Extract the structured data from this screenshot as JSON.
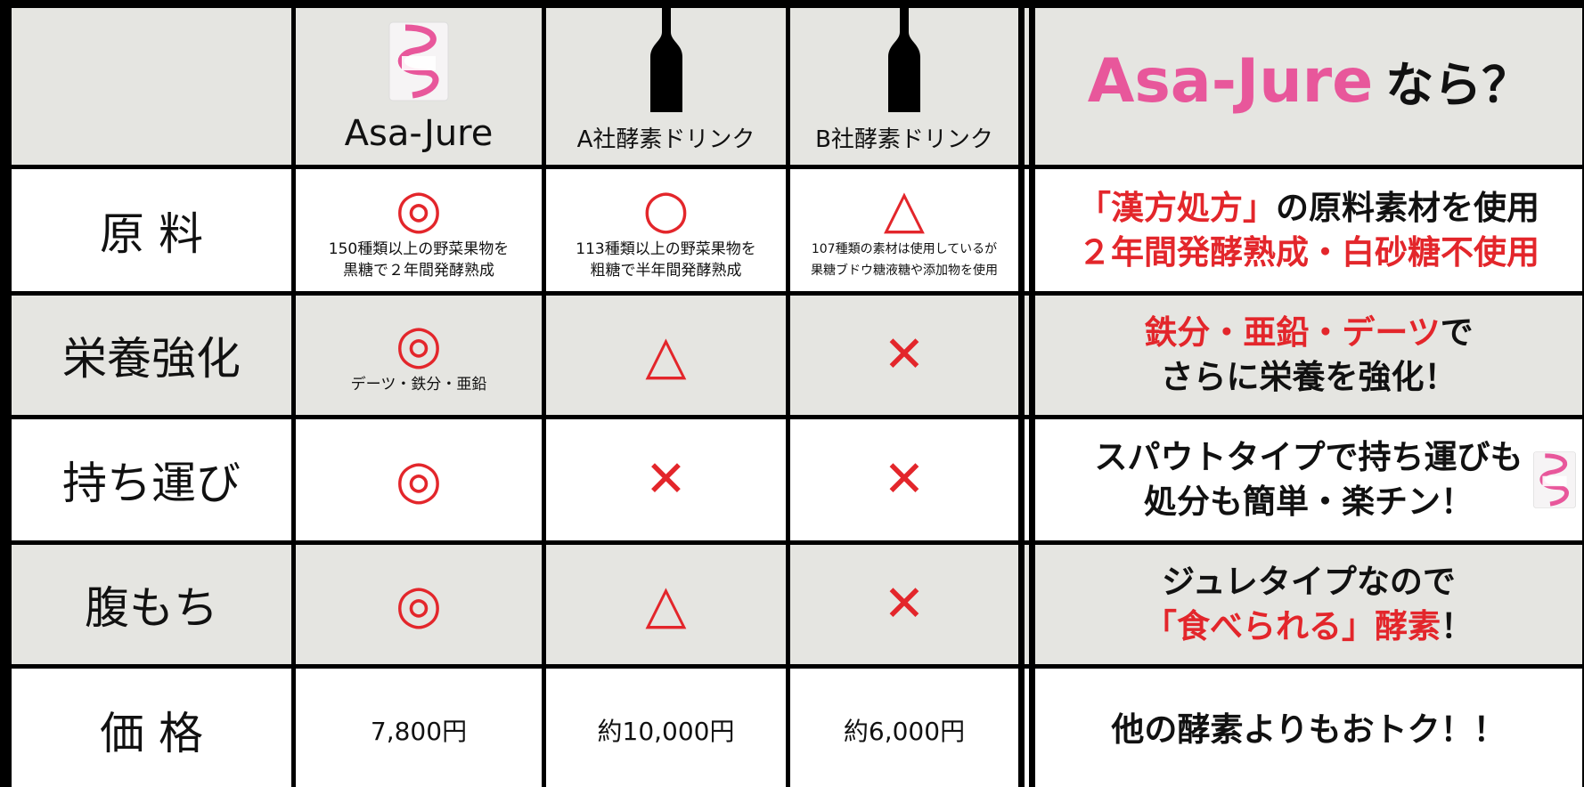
{
  "header": {
    "products": [
      "Asa-Jure",
      "A社酵素ドリンク",
      "B社酵素ドリンク"
    ],
    "summary": [
      {
        "text": "Asa-Jure",
        "color": "#e8579b"
      },
      {
        "text": "なら？",
        "color": "#111111"
      }
    ]
  },
  "rows": [
    {
      "label": "原 料",
      "cells": [
        {
          "mark": "◎",
          "note": [
            "150種類以上の野菜果物を",
            "黒糖で２年間発酵熟成"
          ]
        },
        {
          "mark": "○",
          "note": [
            "113種類以上の野菜果物を",
            "粗糖で半年間発酵熟成"
          ]
        },
        {
          "mark": "△",
          "note": [
            "107種類の素材は使用しているが",
            "果糖ブドウ糖液糖や添加物を使用"
          ]
        }
      ],
      "summary": [
        [
          {
            "text": "「漢方処方」",
            "color": "#e3262b"
          },
          {
            "text": "の原料素材を使用",
            "color": "#111111"
          }
        ],
        [
          {
            "text": "２年間発酵熟成・白砂糖不使用",
            "color": "#e3262b"
          }
        ]
      ]
    },
    {
      "label": "栄養強化",
      "cells": [
        {
          "mark": "◎",
          "note": [
            "デーツ・鉄分・亜鉛"
          ]
        },
        {
          "mark": "△"
        },
        {
          "mark": "✕"
        }
      ],
      "summary": [
        [
          {
            "text": "鉄分・亜鉛・デーツ",
            "color": "#e3262b"
          },
          {
            "text": "で",
            "color": "#111111"
          }
        ],
        [
          {
            "text": "さらに栄養を強化！",
            "color": "#111111"
          }
        ]
      ]
    },
    {
      "label": "持ち運び",
      "cells": [
        {
          "mark": "◎"
        },
        {
          "mark": "✕"
        },
        {
          "mark": "✕"
        }
      ],
      "summary": [
        [
          {
            "text": "スパウトタイプで持ち運びも",
            "color": "#111111"
          }
        ],
        [
          {
            "text": "処分も簡単・楽チン！",
            "color": "#111111"
          }
        ]
      ]
    },
    {
      "label": "腹もち",
      "cells": [
        {
          "mark": "◎"
        },
        {
          "mark": "△"
        },
        {
          "mark": "✕"
        }
      ],
      "summary": [
        [
          {
            "text": "ジュレタイプなので",
            "color": "#111111"
          }
        ],
        [
          {
            "text": "「食べられる」酵素",
            "color": "#e3262b"
          },
          {
            "text": "！",
            "color": "#111111"
          }
        ]
      ]
    },
    {
      "label": "価 格",
      "cells": [
        {
          "text": "7,800円"
        },
        {
          "text": "約10,000円"
        },
        {
          "text": "約6,000円"
        }
      ],
      "summary": [
        [
          {
            "text": "他の酵素よりもおトク！！",
            "color": "#111111"
          }
        ]
      ]
    }
  ]
}
